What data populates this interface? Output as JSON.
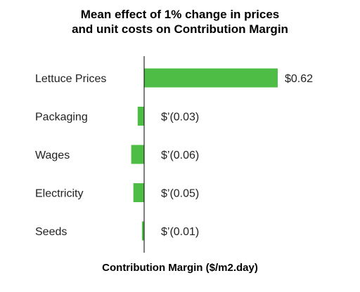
{
  "chart_data": {
    "type": "bar",
    "orientation": "horizontal",
    "title_lines": [
      "Mean effect of 1% change in prices",
      "and unit costs on Contribution Margin"
    ],
    "xlabel": "Contribution Margin ($/m2.day)",
    "ylabel": "",
    "categories": [
      "Lettuce Prices",
      "Packaging",
      "Wages",
      "Electricity",
      "Seeds"
    ],
    "values": [
      0.62,
      -0.03,
      -0.06,
      -0.05,
      -0.01
    ],
    "value_labels": [
      "$0.62",
      "$’(0.03)",
      "$’(0.06)",
      "$’(0.05)",
      "$’(0.01)"
    ],
    "bar_color": "#4dbd45",
    "axis_color": "#000000",
    "grid": false,
    "legend": "none"
  }
}
